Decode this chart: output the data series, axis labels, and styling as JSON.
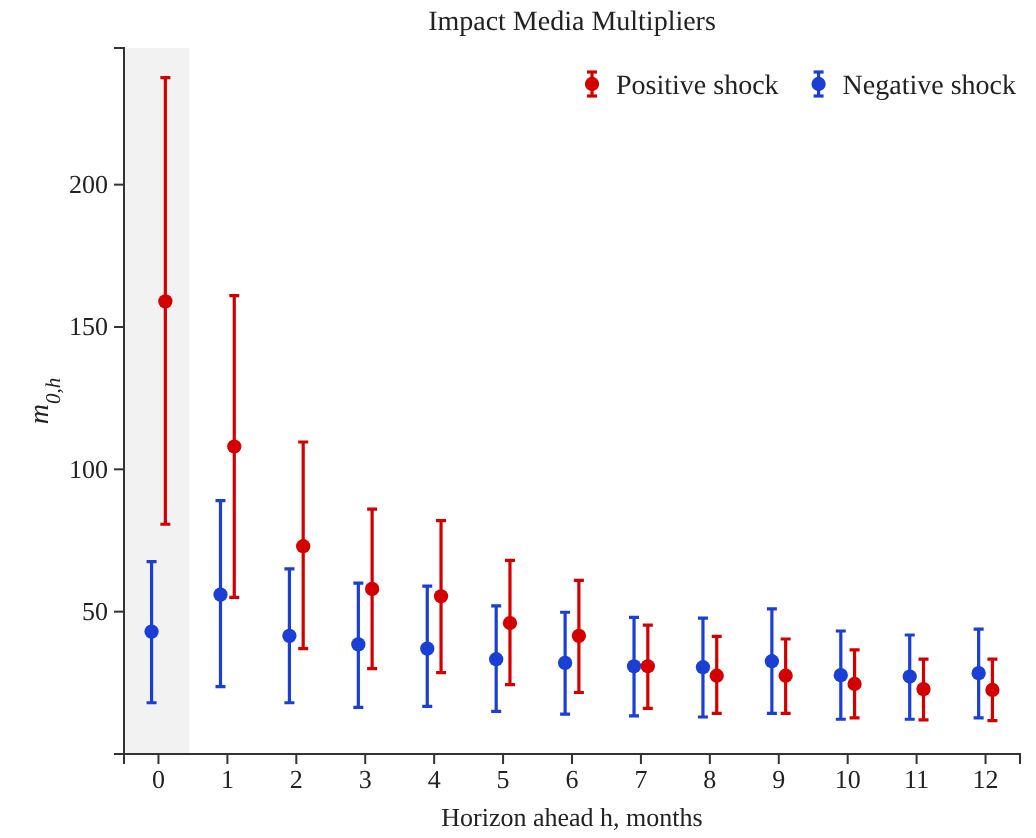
{
  "chart_data": {
    "type": "scatter",
    "title": "Impact Media Multipliers",
    "xlabel": "Horizon ahead h, months",
    "ylabel": "m$_{0,h}$",
    "xlim": [
      -0.5,
      12.5
    ],
    "xticks": [
      0,
      1,
      2,
      3,
      4,
      5,
      6,
      7,
      8,
      9,
      10,
      11,
      12
    ],
    "ylim": [
      0,
      248
    ],
    "yticks": [
      50,
      100,
      150,
      200
    ],
    "marker": "circle",
    "grid": false,
    "legend": "top right",
    "bands": [
      {
        "axis": "x",
        "from": -0.5,
        "to": 0.45,
        "color": "#f2f2f2"
      }
    ],
    "series": [
      {
        "name": "Positive shock",
        "color": "#d40000",
        "x": [
          0.1,
          1.1,
          2.1,
          3.1,
          4.1,
          5.1,
          6.1,
          7.1,
          8.1,
          9.1,
          10.1,
          11.1,
          12.1
        ],
        "values": [
          159,
          108,
          73,
          58,
          55.4,
          46,
          41.5,
          30.8,
          27.5,
          27.5,
          24.6,
          22.8,
          22.5
        ],
        "errors": [
          [
            80.7,
            237.6
          ],
          [
            55,
            161
          ],
          [
            37,
            109.6
          ],
          [
            30,
            86
          ],
          [
            28.6,
            82
          ],
          [
            24.4,
            68
          ],
          [
            21.6,
            61
          ],
          [
            16,
            45.3
          ],
          [
            14.3,
            41.3
          ],
          [
            14.3,
            40.4
          ],
          [
            12.7,
            36.6
          ],
          [
            12,
            33.3
          ],
          [
            11.7,
            33.3
          ]
        ]
      },
      {
        "name": "Negative shock",
        "color": "#1a3fd4",
        "x": [
          -0.1,
          0.9,
          1.9,
          2.9,
          3.9,
          4.9,
          5.9,
          6.9,
          7.9,
          8.9,
          9.9,
          10.9,
          11.9
        ],
        "values": [
          43,
          56,
          41.5,
          38.5,
          37,
          33.3,
          32,
          30.8,
          30.5,
          32.6,
          27.7,
          27.2,
          28.4
        ],
        "errors": [
          [
            18,
            67.6
          ],
          [
            23.7,
            89
          ],
          [
            18,
            65
          ],
          [
            16.4,
            60
          ],
          [
            16.7,
            59
          ],
          [
            15,
            52
          ],
          [
            14,
            49.8
          ],
          [
            13.4,
            48
          ],
          [
            13,
            47.7
          ],
          [
            14.3,
            51
          ],
          [
            12.2,
            43.2
          ],
          [
            12.2,
            41.8
          ],
          [
            12.7,
            43.9
          ]
        ]
      }
    ]
  }
}
